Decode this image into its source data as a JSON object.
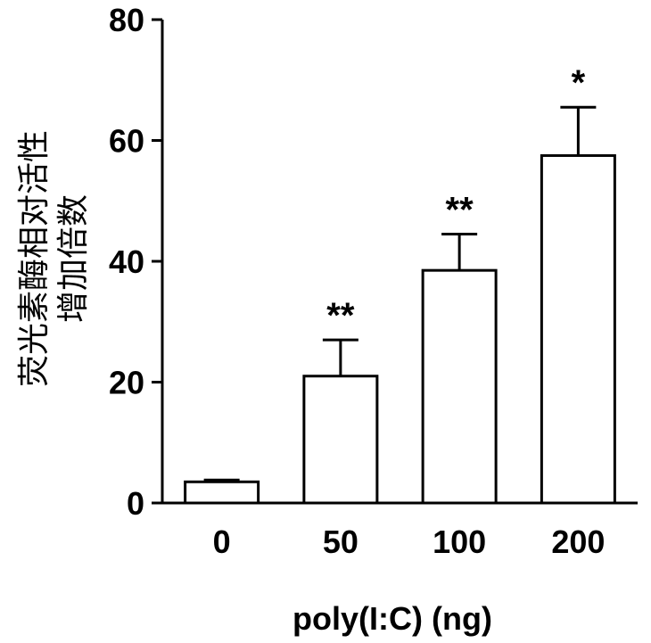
{
  "chart_data": {
    "type": "bar",
    "categories": [
      "0",
      "50",
      "100",
      "200"
    ],
    "values": [
      3.5,
      21,
      38.5,
      57.5
    ],
    "errors": [
      0.3,
      6,
      6,
      8
    ],
    "significance": [
      "",
      "**",
      "**",
      "*"
    ],
    "ylabel_lines": [
      "荧光素酶相对活性",
      "增加倍数"
    ],
    "xlabel": "poly(I:C) (ng)",
    "ylim": [
      0,
      80
    ],
    "yticks": [
      0,
      20,
      40,
      60,
      80
    ],
    "ytick_labels": [
      "0",
      "20",
      "40",
      "60",
      "80"
    ],
    "bar_fill": "#ffffff",
    "bar_stroke": "#000000"
  }
}
